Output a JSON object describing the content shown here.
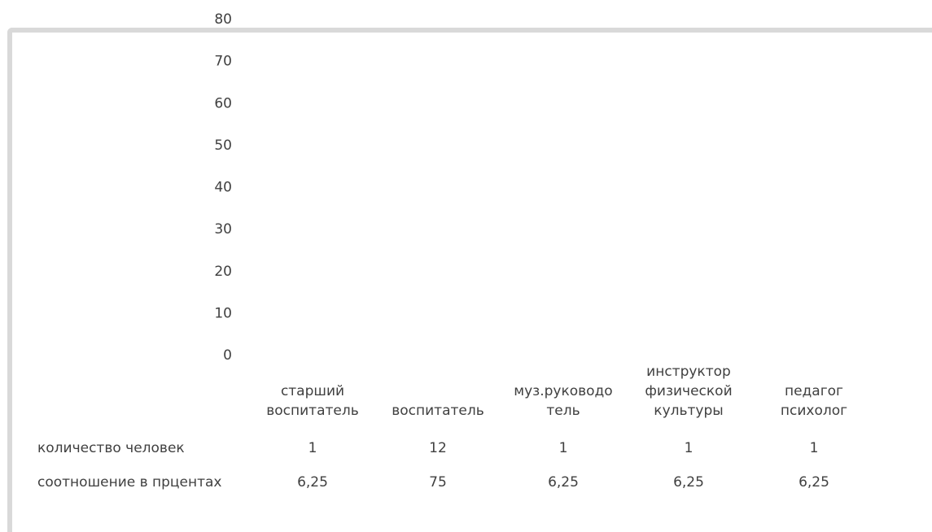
{
  "chart_data": {
    "type": "table",
    "title": "",
    "xlabel": "",
    "ylabel": "",
    "ylim": [
      0,
      80
    ],
    "yticks": [
      "0",
      "10",
      "20",
      "30",
      "40",
      "50",
      "60",
      "70",
      "80"
    ],
    "grid": false,
    "categories": [
      [
        "старший",
        "воспитатель"
      ],
      [
        "воспитатель"
      ],
      [
        "муз.руководо",
        "тель"
      ],
      [
        "инструктор",
        "физической",
        "культуры"
      ],
      [
        "педагог",
        "психолог"
      ]
    ],
    "series": [
      {
        "name": "количество человек",
        "values": [
          1,
          12,
          1,
          1,
          1
        ],
        "labels": [
          "1",
          "12",
          "1",
          "1",
          "1"
        ]
      },
      {
        "name": "соотношение в прцентах",
        "values": [
          6.25,
          75,
          6.25,
          6.25,
          6.25
        ],
        "labels": [
          "6,25",
          "75",
          "6,25",
          "6,25",
          "6,25"
        ]
      }
    ]
  }
}
